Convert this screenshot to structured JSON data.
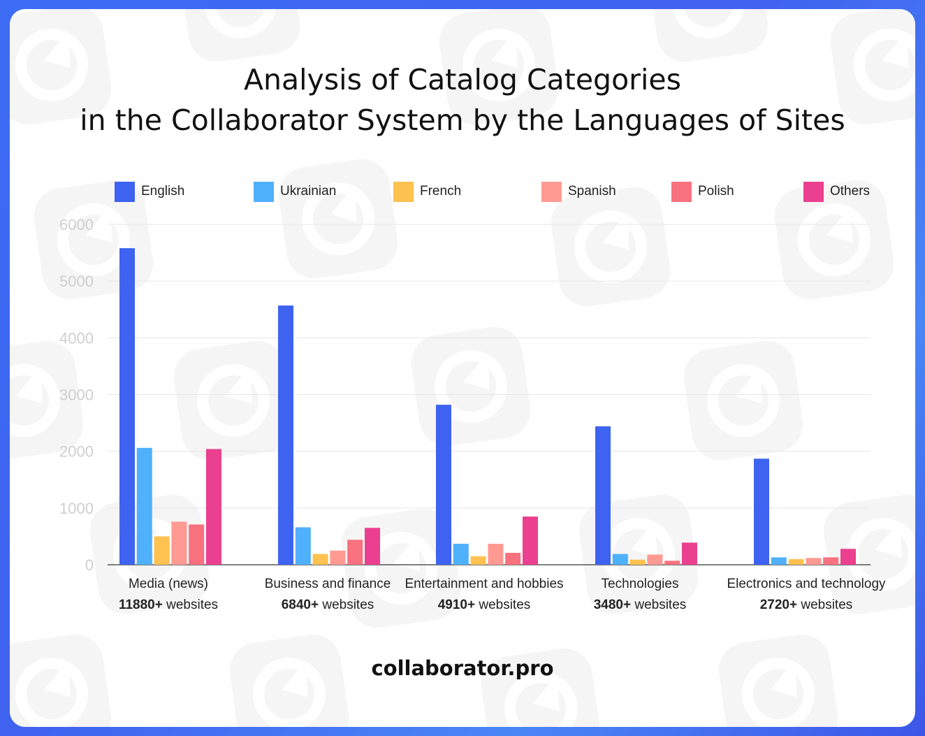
{
  "title_line1": "Analysis of Catalog Categories",
  "title_line2": "in the Collaborator System by the Languages of Sites",
  "footer": "collaborator.pro",
  "colors": {
    "English": "#3d63f0",
    "Ukrainian": "#4fb1fb",
    "French": "#ffc14f",
    "Spanish": "#ff9a93",
    "Polish": "#f8717e",
    "Others": "#eb3f8f"
  },
  "legend": [
    "English",
    "Ukrainian",
    "French",
    "Spanish",
    "Polish",
    "Others"
  ],
  "category_details": [
    {
      "name": "Media (news)",
      "count": "11880+",
      "suffix": " websites"
    },
    {
      "name": "Business and finance",
      "count": "6840+",
      "suffix": " websites"
    },
    {
      "name": "Entertainment and hobbies",
      "count": "4910+",
      "suffix": " websites"
    },
    {
      "name": "Technologies",
      "count": "3480+",
      "suffix": " websites"
    },
    {
      "name": "Electronics and technology",
      "count": "2720+",
      "suffix": " websites"
    }
  ],
  "chart_data": {
    "type": "bar",
    "categories": [
      "Media (news)",
      "Business and finance",
      "Entertainment and hobbies",
      "Technologies",
      "Electronics and technology"
    ],
    "series": [
      {
        "name": "English",
        "values": [
          5580,
          4570,
          2820,
          2440,
          1870
        ]
      },
      {
        "name": "Ukrainian",
        "values": [
          2060,
          660,
          370,
          190,
          130
        ]
      },
      {
        "name": "French",
        "values": [
          500,
          190,
          150,
          90,
          100
        ]
      },
      {
        "name": "Spanish",
        "values": [
          760,
          250,
          370,
          180,
          120
        ]
      },
      {
        "name": "Polish",
        "values": [
          710,
          440,
          210,
          70,
          130
        ]
      },
      {
        "name": "Others",
        "values": [
          2040,
          650,
          850,
          390,
          280
        ]
      }
    ],
    "yticks": [
      "0",
      "1000",
      "2000",
      "3000",
      "4000",
      "5000",
      "6000"
    ],
    "ylim": [
      0,
      6000
    ],
    "grid": true,
    "legend_position": "top"
  }
}
